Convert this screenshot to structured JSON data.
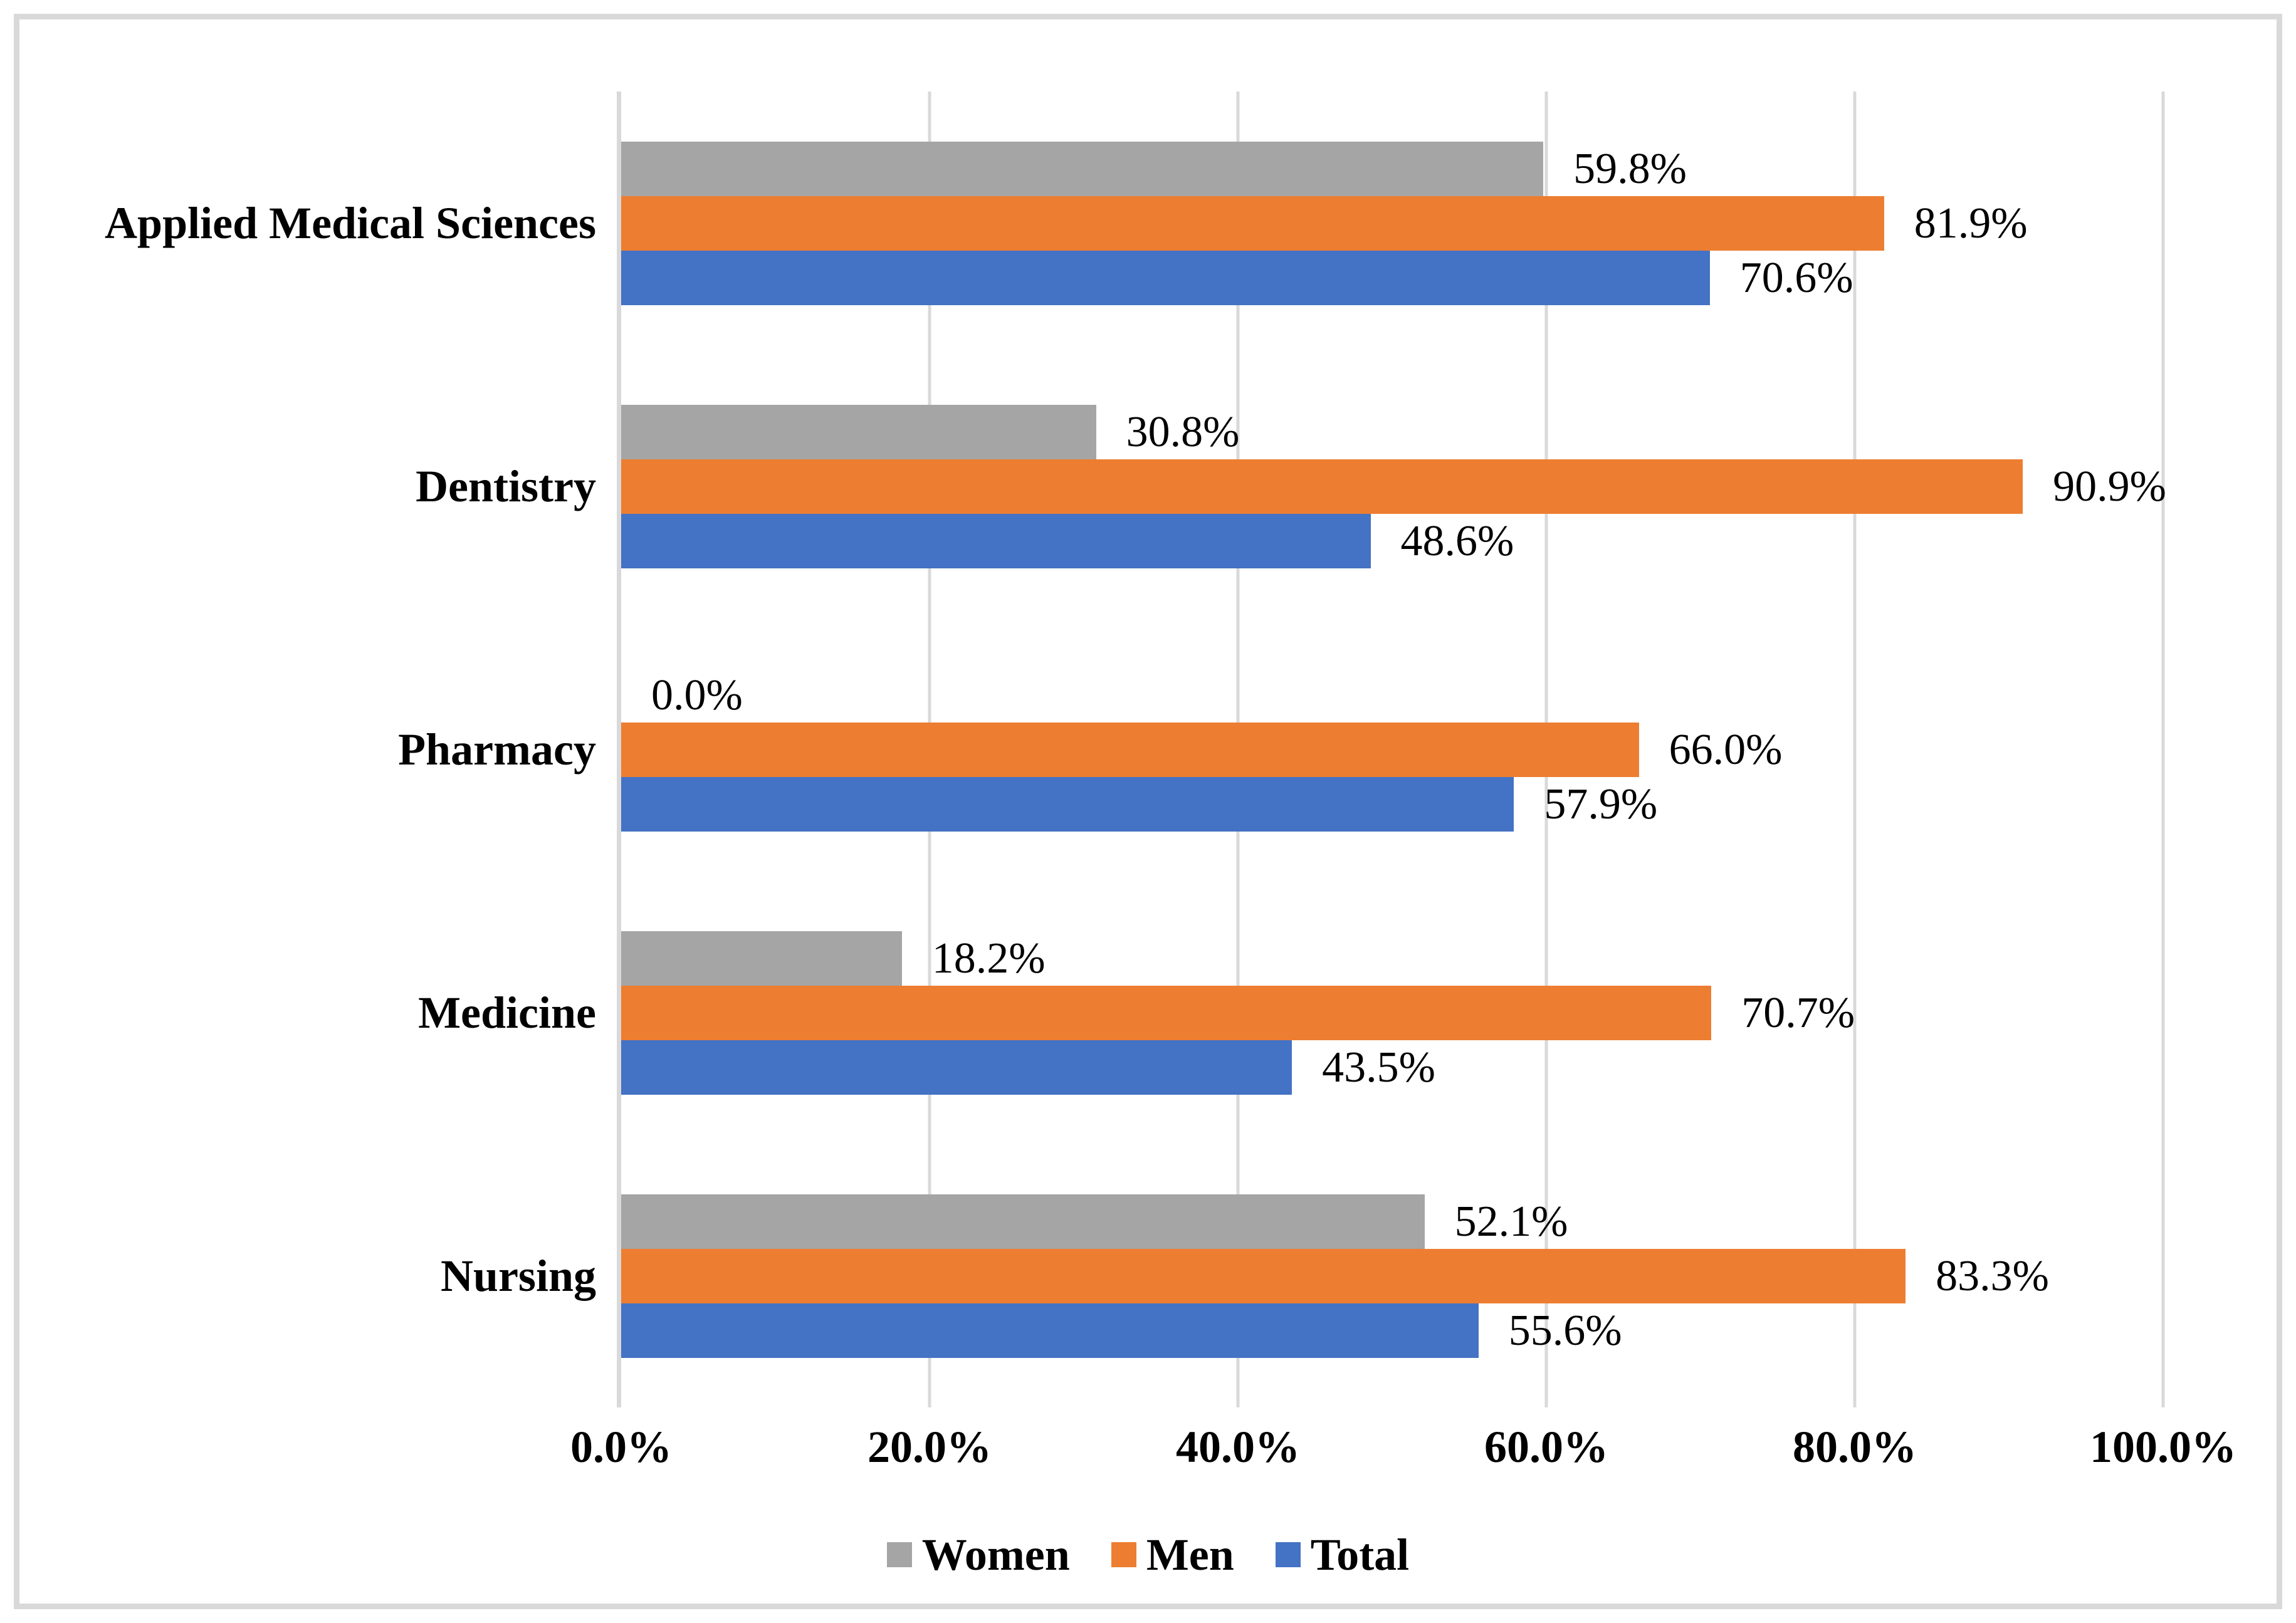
{
  "colors": {
    "background": "#FFFFFF",
    "frame_border": "#D9D9D9",
    "gridline": "#D9D9D9",
    "axis_line": "#D9D9D9",
    "text": "#000000"
  },
  "chart_data": {
    "type": "bar",
    "orientation": "horizontal",
    "categories": [
      "Applied Medical Sciences",
      "Dentistry",
      "Pharmacy",
      "Medicine",
      "Nursing"
    ],
    "series": [
      {
        "name": "Women",
        "color": "#A5A5A5",
        "values": [
          59.8,
          30.8,
          0.0,
          18.2,
          52.1
        ],
        "labels": [
          "59.8%",
          "30.8%",
          "0.0%",
          "18.2%",
          "52.1%"
        ]
      },
      {
        "name": "Men",
        "color": "#ED7D31",
        "values": [
          81.9,
          90.9,
          66.0,
          70.7,
          83.3
        ],
        "labels": [
          "81.9%",
          "90.9%",
          "66.0%",
          "70.7%",
          "83.3%"
        ]
      },
      {
        "name": "Total",
        "color": "#4472C4",
        "values": [
          70.6,
          48.6,
          57.9,
          43.5,
          55.6
        ],
        "labels": [
          "70.6%",
          "48.6%",
          "57.9%",
          "43.5%",
          "55.6%"
        ]
      }
    ],
    "xlim": [
      0,
      100
    ],
    "x_ticks": [
      {
        "value": 0,
        "label": "0.0%"
      },
      {
        "value": 20,
        "label": "20.0%"
      },
      {
        "value": 40,
        "label": "40.0%"
      },
      {
        "value": 60,
        "label": "60.0%"
      },
      {
        "value": 80,
        "label": "80.0%"
      },
      {
        "value": 100,
        "label": "100.0%"
      }
    ],
    "gridlines": "vertical",
    "legend": {
      "position": "bottom",
      "entries": [
        "Women",
        "Men",
        "Total"
      ]
    }
  }
}
